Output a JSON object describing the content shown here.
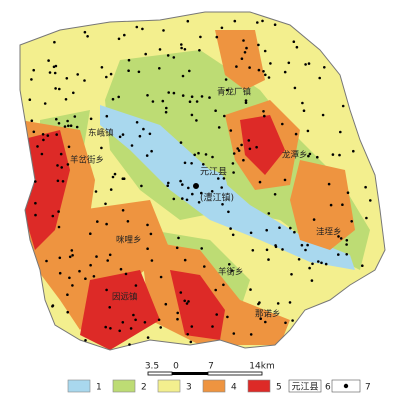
{
  "map": {
    "places": [
      {
        "label": "东峨镇"
      },
      {
        "label": "羊岔街乡"
      },
      {
        "label": "青龙厂镇"
      },
      {
        "label": "龙潭乡"
      },
      {
        "label": "洼垤乡"
      },
      {
        "label": "咪哩乡"
      },
      {
        "label": "因远镇"
      },
      {
        "label": "羊街乡"
      },
      {
        "label": "那诺乡"
      }
    ],
    "county": {
      "label": "元江县",
      "sublabel": "(澧江镇)"
    },
    "scale": {
      "labels": [
        "3.5",
        "0",
        "7",
        "14km"
      ]
    },
    "legend": [
      {
        "label": "1",
        "color": "#a9d8ee"
      },
      {
        "label": "2",
        "color": "#bddc74"
      },
      {
        "label": "3",
        "color": "#f3ef8e"
      },
      {
        "label": "4",
        "color": "#ee9440"
      },
      {
        "label": "5",
        "color": "#dd2a27"
      },
      {
        "label": "6",
        "symbol": "元江县"
      },
      {
        "label": "7"
      }
    ]
  }
}
